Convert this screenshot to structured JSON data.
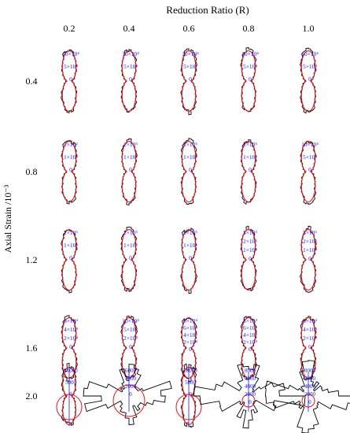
{
  "chart_data": {
    "type": "polar-rose-grid",
    "title": "Reduction Ratio (R)",
    "ylabel": "Axial Strain /10⁻³",
    "columns": [
      "0.2",
      "0.4",
      "0.6",
      "0.8",
      "1.0"
    ],
    "rows": [
      "0.4",
      "0.8",
      "1.2",
      "1.6",
      "2.0"
    ],
    "series_colors": {
      "histogram": "#000000",
      "fit": "#e8141c",
      "radial_labels": "#1a1aff"
    },
    "panels": [
      [
        {
          "shape": "peanut",
          "ring_labels": [
            "10×10⁴",
            "5×10⁴",
            "0"
          ]
        },
        {
          "shape": "peanut",
          "ring_labels": [
            "10×10⁴",
            "5×10⁴",
            "0"
          ]
        },
        {
          "shape": "peanut",
          "ring_labels": [
            "10×10⁴",
            "5×10⁴",
            "0"
          ]
        },
        {
          "shape": "peanut",
          "ring_labels": [
            "10×10⁴",
            "5×10⁴",
            "0"
          ]
        },
        {
          "shape": "peanut",
          "ring_labels": [
            "10×10⁴",
            "5×10⁴",
            "0"
          ]
        }
      ],
      [
        {
          "shape": "peanut",
          "ring_labels": [
            "2×10⁵",
            "1×10⁵",
            "0"
          ]
        },
        {
          "shape": "peanut",
          "ring_labels": [
            "2×10⁵",
            "1×10⁵",
            "0"
          ]
        },
        {
          "shape": "peanut",
          "ring_labels": [
            "2×10⁵",
            "1×10⁵",
            "0"
          ]
        },
        {
          "shape": "peanut",
          "ring_labels": [
            "2×10⁵",
            "1×10⁵",
            "0"
          ]
        },
        {
          "shape": "peanut",
          "ring_labels": [
            "10×10⁴",
            "5×10⁴",
            "0"
          ]
        }
      ],
      [
        {
          "shape": "peanut",
          "ring_labels": [
            "2×10⁵",
            "1×10⁵",
            "0"
          ]
        },
        {
          "shape": "peanut",
          "ring_labels": [
            "2×10⁵",
            "1×10⁵",
            "0"
          ]
        },
        {
          "shape": "peanut",
          "ring_labels": [
            "2×10⁵",
            "1×10⁵",
            "0"
          ]
        },
        {
          "shape": "peanut",
          "ring_labels": [
            "3×10⁵",
            "2×10⁵",
            "1×10⁵",
            "0"
          ]
        },
        {
          "shape": "peanut",
          "ring_labels": [
            "3×10⁵",
            "2×10⁵",
            "1×10⁵",
            "0"
          ]
        }
      ],
      [
        {
          "shape": "peanut",
          "ring_labels": [
            "6×10⁴",
            "4×10⁴",
            "2×10⁴",
            "0"
          ]
        },
        {
          "shape": "peanut",
          "ring_labels": [
            "10×10⁴",
            "5×10⁴",
            "2×10⁴",
            "0"
          ]
        },
        {
          "shape": "peanut",
          "ring_labels": [
            "8×10⁴",
            "6×10⁴",
            "4×10⁴",
            "2×10⁴",
            "0"
          ]
        },
        {
          "shape": "peanut",
          "ring_labels": [
            "8×10⁴",
            "6×10⁴",
            "4×10⁴",
            "2×10⁴",
            "0"
          ]
        },
        {
          "shape": "peanut",
          "ring_labels": [
            "6×10⁴",
            "4×10⁴",
            "2×10⁴",
            "0"
          ]
        }
      ],
      [
        {
          "shape": "peanut",
          "ring_labels": [
            "10000",
            "5000",
            "0"
          ]
        },
        {
          "shape": "star",
          "ring_labels": [
            "6000",
            "4000",
            "2000",
            "0"
          ]
        },
        {
          "shape": "peanut",
          "ring_labels": [
            "10000",
            "5000",
            "0"
          ]
        },
        {
          "shape": "star",
          "ring_labels": [
            "8000",
            "6000",
            "4000",
            "2000",
            "0"
          ]
        },
        {
          "shape": "star",
          "ring_labels": [
            "8000",
            "6000",
            "4000",
            "2000",
            "0"
          ]
        }
      ]
    ]
  }
}
